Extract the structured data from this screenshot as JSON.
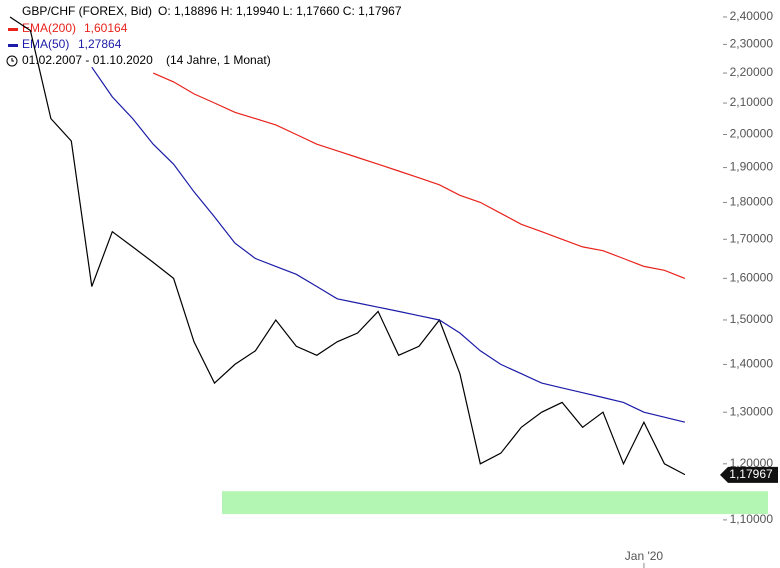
{
  "chart_data": {
    "type": "line",
    "title": "GBP/CHF (FOREX, Bid)",
    "quote": "O: 1,18896  H: 1,19940  L: 1,17660  C: 1,17967",
    "period": "01.02.2007 - 01.10.2020",
    "period_note": "(14 Jahre, 1 Monat)",
    "categories": [
      null,
      null,
      null,
      null,
      null,
      null,
      null,
      null,
      null,
      null,
      null,
      null,
      null,
      null,
      null,
      null,
      null,
      null,
      null,
      null,
      null,
      null,
      null,
      null,
      null,
      null,
      null,
      null,
      null,
      null,
      null,
      "Jan '20",
      null,
      null
    ],
    "series": [
      {
        "name": "GBP/CHF (FOREX, Bid)",
        "color": "#000000",
        "values": [
          2.4,
          2.35,
          2.05,
          1.98,
          1.58,
          1.72,
          1.68,
          1.64,
          1.6,
          1.45,
          1.36,
          1.4,
          1.43,
          1.5,
          1.44,
          1.42,
          1.45,
          1.47,
          1.52,
          1.42,
          1.44,
          1.5,
          1.38,
          1.2,
          1.22,
          1.27,
          1.3,
          1.32,
          1.27,
          1.3,
          1.2,
          1.28,
          1.2,
          1.18
        ]
      },
      {
        "name": "EMA(200)",
        "color": "#e8231c",
        "last_label": "1,60164",
        "values": [
          null,
          null,
          null,
          null,
          null,
          null,
          null,
          2.2,
          2.17,
          2.13,
          2.1,
          2.07,
          2.05,
          2.03,
          2.0,
          1.97,
          1.95,
          1.93,
          1.91,
          1.89,
          1.87,
          1.85,
          1.82,
          1.8,
          1.77,
          1.74,
          1.72,
          1.7,
          1.68,
          1.67,
          1.65,
          1.63,
          1.62,
          1.6
        ]
      },
      {
        "name": "EMA(50)",
        "color": "#1c1ca8",
        "last_label": "1,27864",
        "values": [
          null,
          null,
          null,
          null,
          2.22,
          2.12,
          2.05,
          1.97,
          1.91,
          1.83,
          1.76,
          1.69,
          1.65,
          1.63,
          1.61,
          1.58,
          1.55,
          1.54,
          1.53,
          1.52,
          1.51,
          1.5,
          1.47,
          1.43,
          1.4,
          1.38,
          1.36,
          1.35,
          1.34,
          1.33,
          1.32,
          1.3,
          1.29,
          1.28
        ]
      }
    ],
    "log_scale": true,
    "ylim": [
      1.058,
      2.464
    ],
    "yticks": [
      {
        "value": 1.1,
        "label": "1,10000"
      },
      {
        "value": 1.2,
        "label": "1,20000"
      },
      {
        "value": 1.3,
        "label": "1,30000"
      },
      {
        "value": 1.4,
        "label": "1,40000"
      },
      {
        "value": 1.5,
        "label": "1,50000"
      },
      {
        "value": 1.6,
        "label": "1,60000"
      },
      {
        "value": 1.7,
        "label": "1,70000"
      },
      {
        "value": 1.8,
        "label": "1,80000"
      },
      {
        "value": 1.9,
        "label": "1,90000"
      },
      {
        "value": 2.0,
        "label": "2,00000"
      },
      {
        "value": 2.1,
        "label": "2,10000"
      },
      {
        "value": 2.2,
        "label": "2,20000"
      },
      {
        "value": 2.3,
        "label": "2,30000"
      },
      {
        "value": 2.4,
        "label": "2,40000"
      }
    ],
    "last_price": {
      "value": 1.17967,
      "label": "1,17967"
    },
    "support_zone": {
      "from": 1.11,
      "to": 1.15,
      "color": "#b3f5b3"
    }
  }
}
